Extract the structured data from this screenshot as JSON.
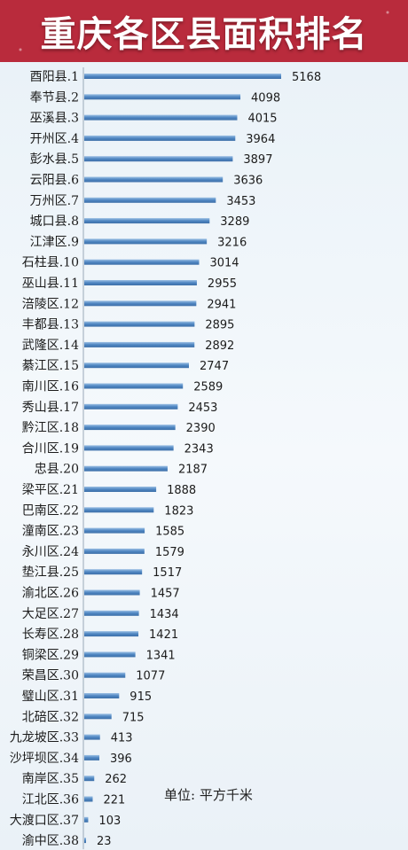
{
  "title": "重庆各区县面积排名",
  "unit_note": "单位:  平方千米",
  "colors": {
    "banner": "#b92b3c",
    "bar": "#5b8fc7",
    "bar_light": "#9cc0e4"
  },
  "chart_data": {
    "type": "bar",
    "orientation": "horizontal",
    "title": "重庆各区县面积排名",
    "categories": [
      "酉阳县.1",
      "奉节县.2",
      "巫溪县.3",
      "开州区.4",
      "彭水县.5",
      "云阳县.6",
      "万州区.7",
      "城口县.8",
      "江津区.9",
      "石柱县.10",
      "巫山县.11",
      "涪陵区.12",
      "丰都县.13",
      "武隆区.14",
      "綦江区.15",
      "南川区.16",
      "秀山县.17",
      "黔江区.18",
      "合川区.19",
      "忠县.20",
      "梁平区.21",
      "巴南区.22",
      "潼南区.23",
      "永川区.24",
      "垫江县.25",
      "渝北区.26",
      "大足区.27",
      "长寿区.28",
      "铜梁区.29",
      "荣昌区.30",
      "璧山区.31",
      "北碚区.32",
      "九龙坡区.33",
      "沙坪坝区.34",
      "南岸区.35",
      "江北区.36",
      "大渡口区.37",
      "渝中区.38"
    ],
    "values": [
      5168,
      4098,
      4015,
      3964,
      3897,
      3636,
      3453,
      3289,
      3216,
      3014,
      2955,
      2941,
      2895,
      2892,
      2747,
      2589,
      2453,
      2390,
      2343,
      2187,
      1888,
      1823,
      1585,
      1579,
      1517,
      1457,
      1434,
      1421,
      1341,
      1077,
      915,
      715,
      413,
      396,
      262,
      221,
      103,
      23
    ],
    "unit": "平方千米",
    "xlim": [
      0,
      5168
    ],
    "grid": false,
    "legend": false
  }
}
